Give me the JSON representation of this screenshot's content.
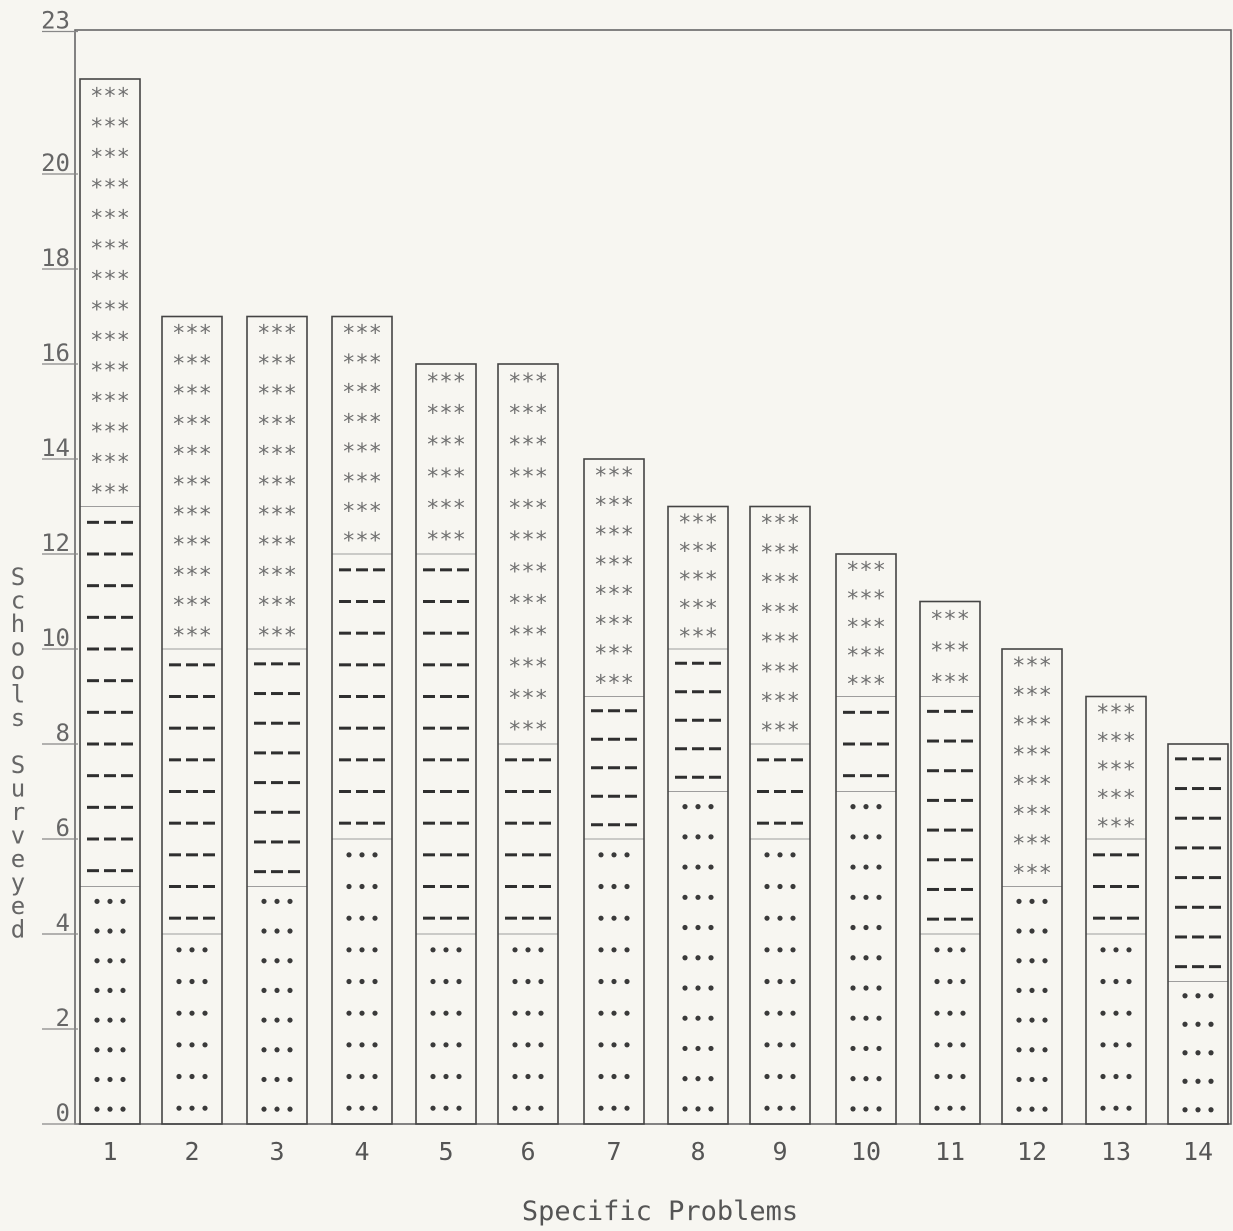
{
  "chart_data": {
    "type": "bar",
    "stacked": true,
    "xlabel": "Specific Problems",
    "ylabel": "Schools Surveyed",
    "categories": [
      "1",
      "2",
      "3",
      "4",
      "5",
      "6",
      "7",
      "8",
      "9",
      "10",
      "11",
      "12",
      "13",
      "14"
    ],
    "series": [
      {
        "pattern": "dots",
        "values": [
          5,
          4,
          5,
          6,
          4,
          4,
          6,
          7,
          6,
          7,
          4,
          5,
          4,
          3
        ]
      },
      {
        "pattern": "dashes",
        "values": [
          8,
          6,
          5,
          6,
          8,
          4,
          3,
          3,
          2,
          2,
          5,
          0,
          2,
          5
        ]
      },
      {
        "pattern": "asterisks",
        "values": [
          9,
          7,
          7,
          5,
          4,
          8,
          5,
          3,
          5,
          3,
          2,
          5,
          3,
          0
        ]
      }
    ],
    "totals": [
      22,
      17,
      17,
      17,
      16,
      16,
      14,
      13,
      13,
      12,
      11,
      10,
      9,
      8
    ],
    "ylim": [
      0,
      23
    ],
    "yticks": [
      "0",
      "2",
      "4",
      "6",
      "8",
      "10",
      "12",
      "14",
      "16",
      "18",
      "20",
      "23"
    ],
    "grid": false,
    "legend": "none"
  },
  "colors": {
    "paper": "#f7f6f1",
    "ink": "#444444",
    "dots": "#3a3a3a",
    "dashes": "#2f2f2f",
    "asterisks": "#707070"
  }
}
